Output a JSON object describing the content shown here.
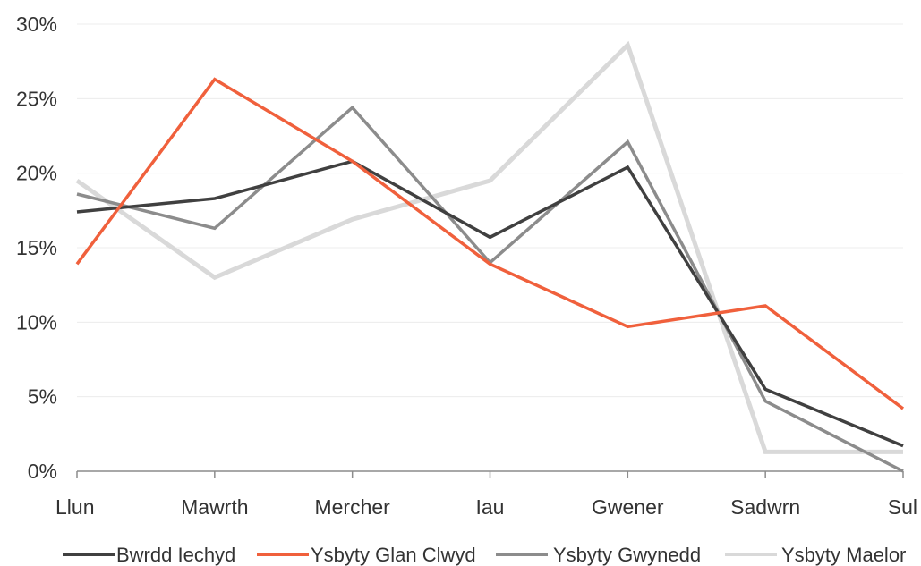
{
  "chart_data": {
    "type": "line",
    "categories": [
      "Llun",
      "Mawrth",
      "Mercher",
      "Iau",
      "Gwener",
      "Sadwrn",
      "Sul"
    ],
    "y_ticks": [
      "0%",
      "5%",
      "10%",
      "15%",
      "20%",
      "25%",
      "30%"
    ],
    "ylim": [
      0,
      30
    ],
    "grid": true,
    "legend_position": "bottom",
    "series": [
      {
        "name": "Bwrdd Iechyd",
        "color": "#404040",
        "values": [
          17.4,
          18.3,
          20.8,
          15.7,
          20.4,
          5.5,
          1.7
        ]
      },
      {
        "name": "Ysbyty Glan Clwyd",
        "color": "#f0603c",
        "values": [
          13.9,
          26.3,
          20.8,
          13.9,
          9.7,
          11.1,
          4.2
        ]
      },
      {
        "name": "Ysbyty Gwynedd",
        "color": "#8c8c8c",
        "values": [
          18.6,
          16.3,
          24.4,
          14.0,
          22.1,
          4.7,
          0.0
        ]
      },
      {
        "name": "Ysbyty Maelor",
        "color": "#d9d9d9",
        "values": [
          19.5,
          13.0,
          16.9,
          19.5,
          28.6,
          1.3,
          1.3
        ]
      }
    ]
  }
}
